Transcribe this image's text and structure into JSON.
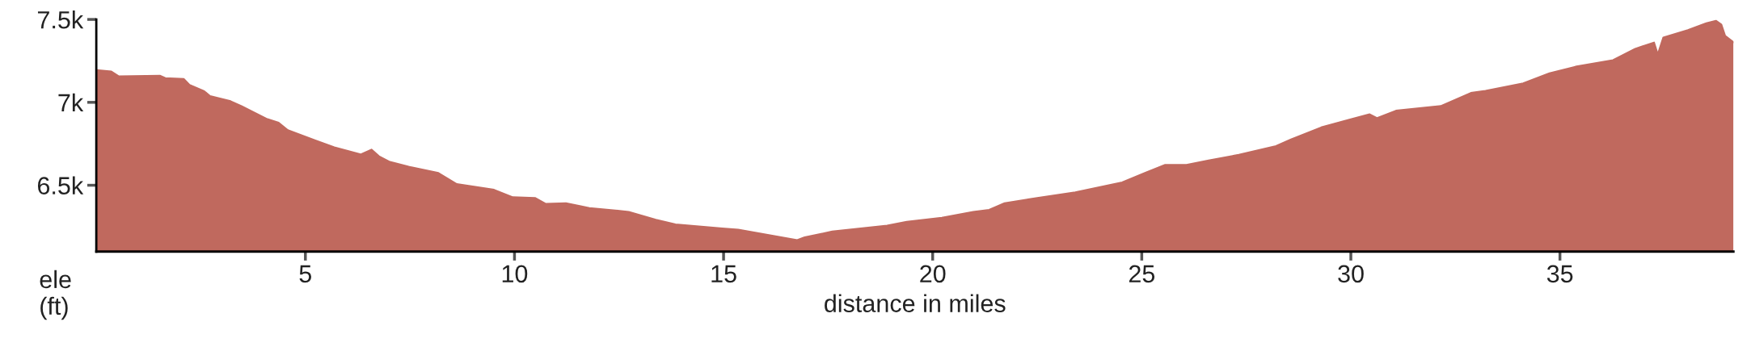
{
  "chart_data": {
    "type": "area",
    "xlabel": "distance in miles",
    "ylabel": "ele\n(ft)",
    "xlim": [
      0,
      39.15
    ],
    "ylim": [
      6100,
      7500
    ],
    "xticks": [
      5,
      10,
      15,
      20,
      25,
      30,
      35
    ],
    "yticks": [
      {
        "value": 6500,
        "label": "6.5k"
      },
      {
        "value": 7000,
        "label": "7k"
      },
      {
        "value": 7500,
        "label": "7.5k"
      }
    ],
    "grid": false,
    "legend": false,
    "series": [
      {
        "color": "#c0695e",
        "x": [
          0,
          0.36,
          0.54,
          1.52,
          1.65,
          2.09,
          2.23,
          2.58,
          2.72,
          3.21,
          3.47,
          4.09,
          4.36,
          4.58,
          5.25,
          5.69,
          6.32,
          6.58,
          6.76,
          7.02,
          7.47,
          8.18,
          8.62,
          9.51,
          9.96,
          10.49,
          10.75,
          11.23,
          11.79,
          12.73,
          13.38,
          13.85,
          14.97,
          15.35,
          16.76,
          16.94,
          17.6,
          18.91,
          19.38,
          20.22,
          20.97,
          21.35,
          21.72,
          22.47,
          23.41,
          24.53,
          25.09,
          25.56,
          26.07,
          26.6,
          27.32,
          28.21,
          28.57,
          29.29,
          30.0,
          30.45,
          30.63,
          31.08,
          32.15,
          32.87,
          33.22,
          34.12,
          34.75,
          35.37,
          36.27,
          36.8,
          37.25,
          37.34,
          37.47,
          38.06,
          38.5,
          38.73,
          38.86,
          38.95,
          39.15
        ],
        "values": [
          7195,
          7186,
          7157,
          7161,
          7146,
          7141,
          7105,
          7067,
          7038,
          7007,
          6978,
          6899,
          6877,
          6832,
          6769,
          6729,
          6686,
          6715,
          6675,
          6641,
          6612,
          6574,
          6507,
          6473,
          6428,
          6424,
          6388,
          6392,
          6363,
          6340,
          6292,
          6264,
          6240,
          6233,
          6169,
          6186,
          6221,
          6257,
          6280,
          6304,
          6340,
          6352,
          6392,
          6422,
          6458,
          6517,
          6576,
          6623,
          6623,
          6650,
          6684,
          6736,
          6777,
          6849,
          6898,
          6928,
          6905,
          6950,
          6978,
          7057,
          7070,
          7115,
          7176,
          7215,
          7255,
          7323,
          7361,
          7289,
          7391,
          7436,
          7477,
          7492,
          7470,
          7402,
          7363
        ]
      }
    ]
  }
}
